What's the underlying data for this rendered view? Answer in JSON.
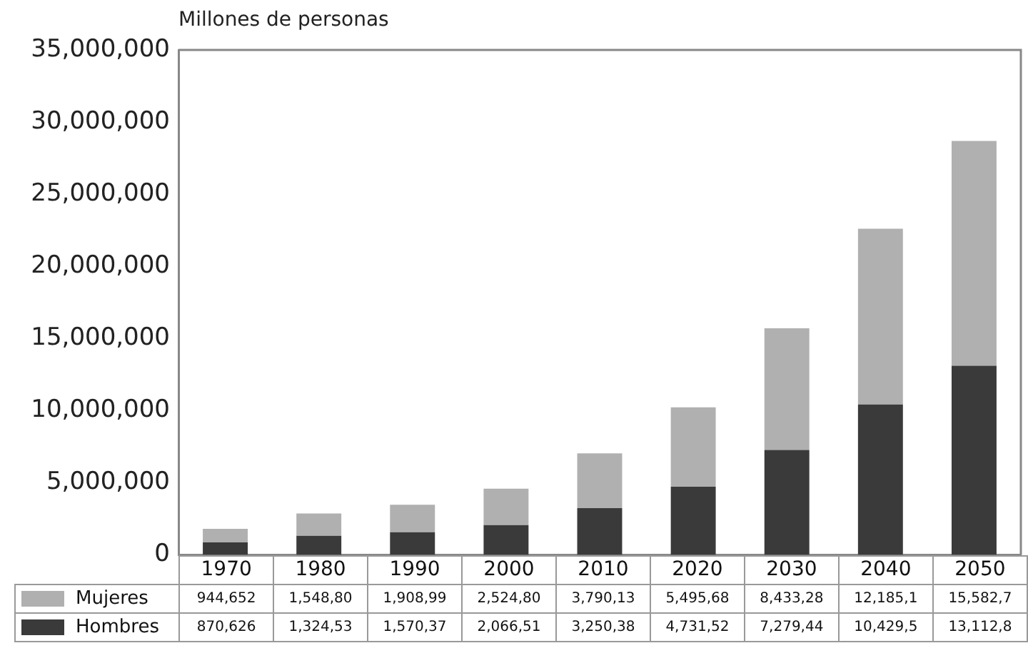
{
  "chart_data": {
    "type": "bar",
    "ylabel": "Millones de personas",
    "categories": [
      "1970",
      "1980",
      "1990",
      "2000",
      "2010",
      "2020",
      "2030",
      "2040",
      "2050"
    ],
    "stacked": true,
    "legend": "bottom",
    "data_labels": false,
    "ylim": [
      0,
      35000000
    ],
    "yticks": [
      0,
      {
        "value": 5000000,
        "label": "5,000,000"
      },
      {
        "value": 10000000,
        "label": "10,000,000"
      },
      {
        "value": 15000000,
        "label": "15,000,000"
      },
      {
        "value": 20000000,
        "label": "20,000,000"
      },
      {
        "value": 25000000,
        "label": "25,000,000"
      },
      {
        "value": 30000000,
        "label": "30,000,000"
      },
      {
        "value": 35000000,
        "label": "35,000,000"
      }
    ],
    "series": [
      {
        "name": "Hombres",
        "color": "#3a3a3a",
        "values": [
          870626,
          1324530,
          1570370,
          2066510,
          3250380,
          4731520,
          7279440,
          10429500,
          13112800
        ],
        "value_labels": [
          "870,626",
          "1,324,53",
          "1,570,37",
          "2,066,51",
          "3,250,38",
          "4,731,52",
          "7,279,44",
          "10,429,5",
          "13,112,8"
        ]
      },
      {
        "name": "Mujeres",
        "color": "#b0b0b0",
        "values": [
          944652,
          1548800,
          1908990,
          2524800,
          3790130,
          5495680,
          8433280,
          12185100,
          15582700
        ],
        "value_labels": [
          "944,652",
          "1,548,80",
          "1,908,99",
          "2,524,80",
          "3,790,13",
          "5,495,68",
          "8,433,28",
          "12,185,1",
          "15,582,7"
        ]
      }
    ]
  }
}
